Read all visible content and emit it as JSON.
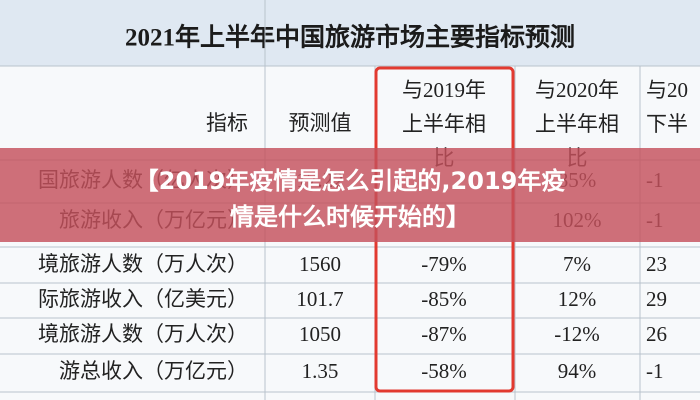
{
  "table": {
    "title": "2021年上半年中国旅游市场主要指标预测",
    "header": [
      [
        "指标"
      ],
      [
        "预测值"
      ],
      [
        "与2019年",
        "上半年相",
        "比"
      ],
      [
        "与2020年",
        "上半年相",
        "比"
      ],
      [
        "与20",
        "下半"
      ]
    ],
    "rows": [
      [
        "国旅游人数（亿人次）",
        "17.22",
        null,
        "85%",
        "-1"
      ],
      [
        "旅游收入（万亿元）",
        null,
        null,
        "102%",
        "-1"
      ],
      [
        "境旅游人数（万人次）",
        "1560",
        "-79%",
        "7%",
        "23"
      ],
      [
        "际旅游收入（亿美元）",
        "101.7",
        "-85%",
        "12%",
        "29"
      ],
      [
        "境旅游人数（万人次）",
        "1050",
        "-87%",
        "-12%",
        "26"
      ],
      [
        "游总收入（万亿元）",
        "1.35",
        "-58%",
        "94%",
        "-1"
      ]
    ]
  },
  "banner": {
    "lines": [
      "【2019年疫情是怎么引起的,2019年疫",
      "情是什么时候开始的】"
    ]
  }
}
